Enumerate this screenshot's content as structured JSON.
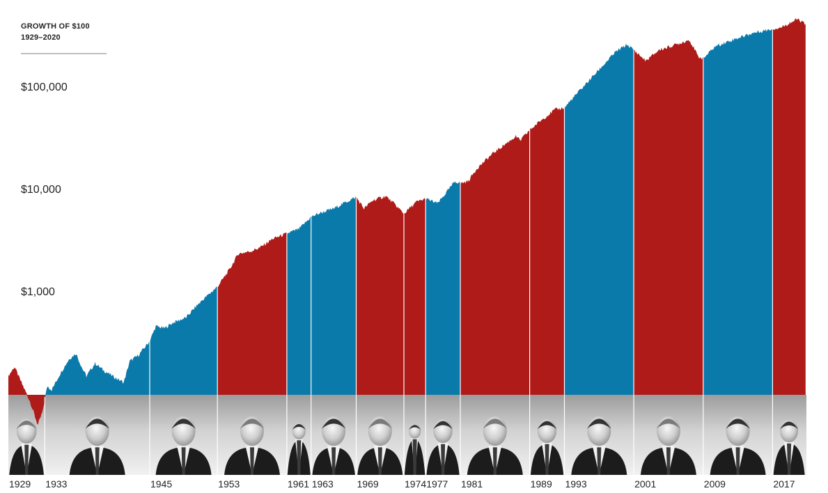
{
  "chart_data": {
    "type": "area",
    "title": "GROWTH OF $100",
    "subtitle": "1929–2020",
    "y_scale": "log",
    "ylim": [
      100,
      450000
    ],
    "y_ticks": [
      {
        "value": 1000,
        "label": "$1,000"
      },
      {
        "value": 10000,
        "label": "$10,000"
      },
      {
        "value": 100000,
        "label": "$100,000"
      }
    ],
    "xlim": [
      1929,
      2021
    ],
    "grid": false,
    "colors": {
      "republican": "#ae1b18",
      "democrat": "#0a7aab",
      "portrait_band": "#c7c7c7",
      "separator": "#ffffff"
    },
    "terms": [
      {
        "start": 1929.0,
        "end": 1933.2,
        "label": "1929",
        "party": "republican",
        "portrait": "Hoover-style portrait"
      },
      {
        "start": 1933.2,
        "end": 1945.3,
        "label": "1933",
        "party": "democrat",
        "portrait": "Roosevelt-style portrait"
      },
      {
        "start": 1945.3,
        "end": 1953.1,
        "label": "1945",
        "party": "democrat",
        "portrait": "Truman-style portrait"
      },
      {
        "start": 1953.1,
        "end": 1961.1,
        "label": "1953",
        "party": "republican",
        "portrait": "Eisenhower-style portrait"
      },
      {
        "start": 1961.1,
        "end": 1963.9,
        "label": "1961",
        "party": "democrat",
        "portrait": "Kennedy-style portrait"
      },
      {
        "start": 1963.9,
        "end": 1969.1,
        "label": "1963",
        "party": "democrat",
        "portrait": "Johnson-style portrait"
      },
      {
        "start": 1969.1,
        "end": 1974.6,
        "label": "1969",
        "party": "republican",
        "portrait": "Nixon-style portrait"
      },
      {
        "start": 1974.6,
        "end": 1977.1,
        "label": "1974",
        "party": "republican",
        "portrait": "Ford-style portrait"
      },
      {
        "start": 1977.1,
        "end": 1981.1,
        "label": "1977",
        "party": "democrat",
        "portrait": "Carter-style portrait"
      },
      {
        "start": 1981.1,
        "end": 1989.1,
        "label": "1981",
        "party": "republican",
        "portrait": "Reagan-style portrait"
      },
      {
        "start": 1989.1,
        "end": 1993.1,
        "label": "1989",
        "party": "republican",
        "portrait": "Bush-style portrait"
      },
      {
        "start": 1993.1,
        "end": 2001.1,
        "label": "1993",
        "party": "democrat",
        "portrait": "Clinton-style portrait"
      },
      {
        "start": 2001.1,
        "end": 2009.1,
        "label": "2001",
        "party": "republican",
        "portrait": "G.W. Bush-style portrait"
      },
      {
        "start": 2009.1,
        "end": 2017.1,
        "label": "2009",
        "party": "democrat",
        "portrait": "Obama-style portrait"
      },
      {
        "start": 2017.1,
        "end": 2020.9,
        "label": "2017",
        "party": "republican",
        "portrait": "Trump-style portrait"
      }
    ],
    "series": [
      {
        "values_x": [
          1929.0,
          1929.7,
          1930.5,
          1931.5,
          1932.4,
          1933.0,
          1933.2,
          1933.5,
          1934.0,
          1935.0,
          1936.0,
          1936.8,
          1937.5,
          1938.0,
          1939.0,
          1940.0,
          1941.0,
          1942.3,
          1943.0,
          1944.0,
          1945.3,
          1946.0,
          1947.0,
          1948.0,
          1949.5,
          1950.5,
          1951.5,
          1953.1,
          1954.5,
          1955.5,
          1957.0,
          1958.0,
          1959.5,
          1961.1,
          1962.5,
          1963.9,
          1965.0,
          1966.5,
          1968.0,
          1969.1,
          1970.0,
          1971.0,
          1972.5,
          1973.5,
          1974.6,
          1976.0,
          1977.1,
          1978.5,
          1980.5,
          1981.1,
          1982.0,
          1983.0,
          1985.0,
          1987.5,
          1988.0,
          1989.1,
          1990.5,
          1992.0,
          1993.1,
          1995.0,
          1997.0,
          1999.0,
          2000.3,
          2001.1,
          2002.5,
          2004.0,
          2006.0,
          2007.5,
          2008.5,
          2009.1,
          2010.5,
          2013.0,
          2015.0,
          2017.1,
          2018.0,
          2019.0,
          2020.0,
          2020.9
        ],
        "values_y": [
          150,
          185,
          130,
          85,
          50,
          70,
          90,
          120,
          110,
          160,
          220,
          250,
          180,
          150,
          200,
          170,
          150,
          130,
          210,
          240,
          330,
          460,
          440,
          500,
          560,
          700,
          850,
          1120,
          1650,
          2350,
          2500,
          2700,
          3300,
          3700,
          4100,
          5400,
          5900,
          6500,
          7600,
          8400,
          6500,
          7800,
          8600,
          7200,
          5800,
          7500,
          8100,
          7300,
          12000,
          11500,
          12000,
          16000,
          23000,
          33000,
          30000,
          38000,
          48000,
          60000,
          63000,
          95000,
          145000,
          220000,
          260000,
          230000,
          180000,
          230000,
          260000,
          290000,
          200000,
          190000,
          250000,
          300000,
          340000,
          370000,
          380000,
          420000,
          460000,
          410000
        ]
      }
    ]
  }
}
